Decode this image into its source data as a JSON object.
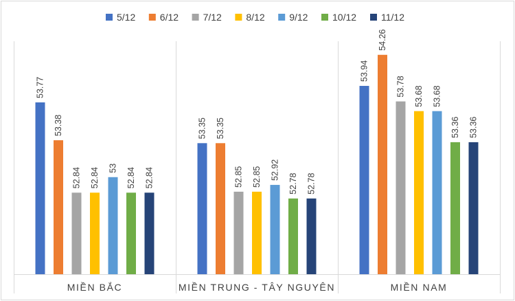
{
  "chart_data": {
    "type": "bar",
    "title": "",
    "xlabel": "",
    "ylabel": "",
    "ylim": [
      52.0,
      54.4
    ],
    "grid": false,
    "legend_position": "top-center",
    "categories": [
      "MIỀN BẮC",
      "MIỀN TRUNG - TÂY NGUYÊN",
      "MIỀN NAM"
    ],
    "series": [
      {
        "name": "5/12",
        "color": "#4472C4",
        "values": [
          53.77,
          53.35,
          53.94
        ],
        "labels": [
          "53.77",
          "53.35",
          "53.94"
        ]
      },
      {
        "name": "6/12",
        "color": "#ED7D31",
        "values": [
          53.38,
          53.35,
          54.26
        ],
        "labels": [
          "53.38",
          "53.35",
          "54.26"
        ]
      },
      {
        "name": "7/12",
        "color": "#A5A5A5",
        "values": [
          52.84,
          52.85,
          53.78
        ],
        "labels": [
          "52.84",
          "52.85",
          "53.78"
        ]
      },
      {
        "name": "8/12",
        "color": "#FFC000",
        "values": [
          52.84,
          52.85,
          53.68
        ],
        "labels": [
          "52.84",
          "52.85",
          "53.68"
        ]
      },
      {
        "name": "9/12",
        "color": "#5B9BD5",
        "values": [
          53.0,
          52.92,
          53.68
        ],
        "labels": [
          "53",
          "52.92",
          "53.68"
        ]
      },
      {
        "name": "10/12",
        "color": "#70AD47",
        "values": [
          52.84,
          52.78,
          53.36
        ],
        "labels": [
          "52.84",
          "52.78",
          "53.36"
        ]
      },
      {
        "name": "11/12",
        "color": "#264478",
        "values": [
          52.84,
          52.78,
          53.36
        ],
        "labels": [
          "52.84",
          "52.78",
          "53.36"
        ]
      }
    ]
  }
}
